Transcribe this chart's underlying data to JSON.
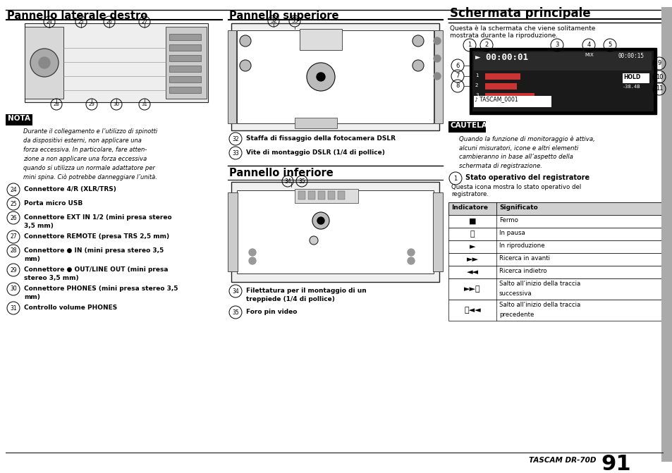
{
  "bg_color": "#ffffff",
  "page_width": 9.54,
  "page_height": 6.71,
  "section1_title": "Pannello laterale destro",
  "section2_title": "Pannello superiore",
  "section3_title": "Schermata principale",
  "nota_label": "NOTA",
  "nota_text": "Durante il collegamento e l’utilizzo di spinotti\nda dispositivi esterni, non applicare una\nforza eccessiva. In particolare, fare atten-\nzione a non applicare una forza eccessiva\nquando si utilizza un normale adattatore per\nmini spina. Ciò potrebbe danneggiare l’unità.",
  "items_col1": [
    [
      "24",
      "Connettore 4/R (XLR/TRS)"
    ],
    [
      "25",
      "Porta micro USB"
    ],
    [
      "26",
      "Connettore EXT IN 1/2 (mini presa stereo\n3,5 mm)"
    ],
    [
      "27",
      "Connettore REMOTE (presa TRS 2,5 mm)"
    ],
    [
      "28",
      "Connettore ● IN (mini presa stereo 3,5\nmm)"
    ],
    [
      "29",
      "Connettore ● OUT/LINE OUT (mini presa\nstereo 3,5 mm)"
    ],
    [
      "30",
      "Connettore PHONES (mini presa stereo 3,5\nmm)"
    ],
    [
      "31",
      "Controllo volume PHONES"
    ]
  ],
  "items_col2_sup": [
    [
      "32",
      "Staffa di fissaggio della fotocamera DSLR"
    ],
    [
      "33",
      "Vite di montaggio DSLR (1/4 di pollice)"
    ]
  ],
  "pannello_inferiore_title": "Pannello inferiore",
  "items_col2_inf": [
    [
      "34",
      "Filettatura per il montaggio di un\ntreppiede (1/4 di pollice)"
    ],
    [
      "35",
      "Foro pin video"
    ]
  ],
  "col3_intro": "Questa è la schermata che viene solitamente\nmostrata durante la riproduzione.",
  "cautela_label": "CAUTELA",
  "cautela_text": "Quando la funzione di monitoraggio è attiva,\nalcuni misuratori, icone e altri elementi\ncambieranno in base all’aspetto della\nschermata di registrazione.",
  "item1_label": "1",
  "item1_title": "Stato operativo del registratore",
  "item1_desc": "Questa icona mostra lo stato operativo del\nregistratore.",
  "table_headers": [
    "Indicatore",
    "Significato"
  ],
  "table_rows": [
    [
      "■",
      "Fermo"
    ],
    [
      "⏸",
      "In pausa"
    ],
    [
      "►",
      "In riproduzione"
    ],
    [
      "►►",
      "Ricerca in avanti"
    ],
    [
      "◄◄",
      "Ricerca indietro"
    ],
    [
      "►►⏮",
      "Salto all’inizio della traccia\nsuccessiva"
    ],
    [
      "⏮◄◄",
      "Salto all’inizio della traccia\nprecedente"
    ]
  ],
  "footer_brand": "TASCAM DR-70D",
  "footer_num": "91"
}
